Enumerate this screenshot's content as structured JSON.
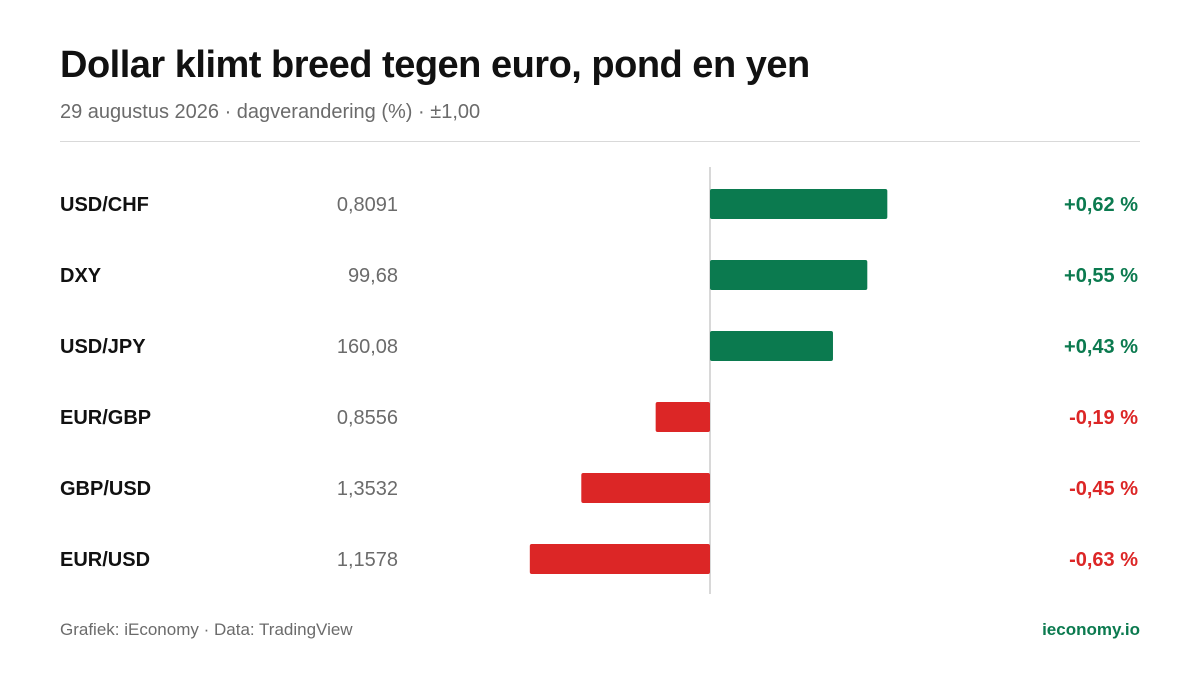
{
  "title": "Dollar klimt breed tegen euro, pond en yen",
  "subtitle": "29 augustus 2026 · dagverandering (%) · ±1,00",
  "colors": {
    "positive": "#0b7a4f",
    "negative": "#dc2626",
    "zero_line": "#cccccc"
  },
  "chart_data": {
    "type": "bar",
    "orientation": "horizontal",
    "categories": [
      "USD/CHF",
      "DXY",
      "USD/JPY",
      "EUR/GBP",
      "GBP/USD",
      "EUR/USD"
    ],
    "rates": [
      "0,8091",
      "99,68",
      "160,08",
      "0,8556",
      "1,3532",
      "1,1578"
    ],
    "values": [
      0.62,
      0.55,
      0.43,
      -0.19,
      -0.45,
      -0.63
    ],
    "value_labels": [
      "+0,62 %",
      "+0,55 %",
      "+0,43 %",
      "-0,19 %",
      "-0,45 %",
      "-0,63 %"
    ],
    "xlim": [
      -1.0,
      1.0
    ]
  },
  "footer": {
    "source": "Grafiek: iEconomy · Data: TradingView",
    "brand": "ieconomy.io"
  }
}
